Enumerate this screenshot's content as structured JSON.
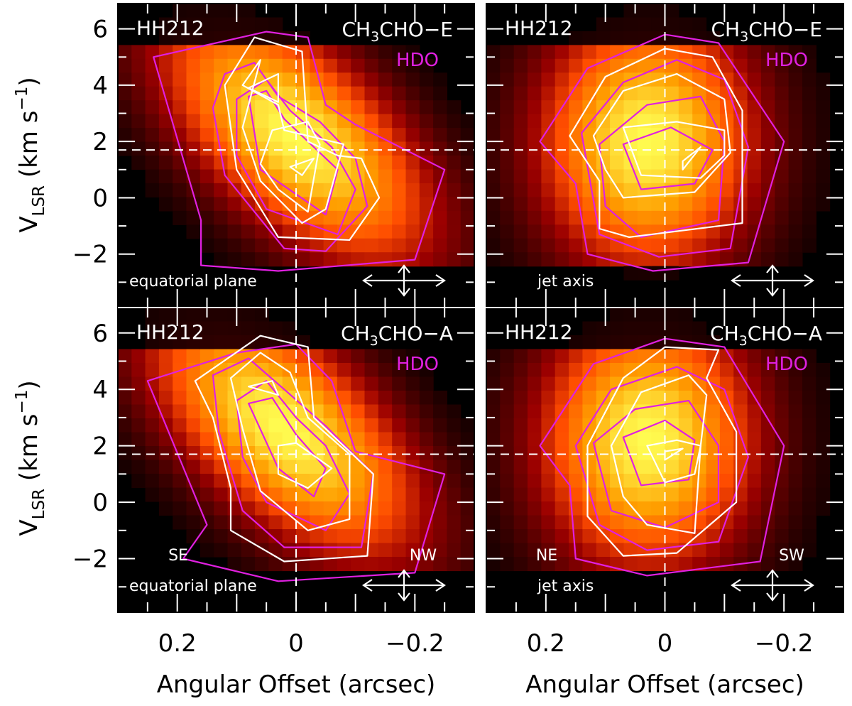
{
  "chart_data": {
    "type": "heatmap",
    "figure_description": "Position-velocity diagrams with contours",
    "colors": {
      "background": "#000000",
      "species_contour": "#ffffff",
      "hdo_contour": "#e020e0",
      "hdo_label": "#e020e0",
      "reference_lines": "#ffffff"
    },
    "xlabel": "Angular Offset (arcsec)",
    "ylabel": {
      "main": "V",
      "subscript": "LSR",
      "units_prefix": "(km s",
      "units_exponent": "−1",
      "units_suffix": ")"
    },
    "x_range": [
      0.3,
      -0.3
    ],
    "y_range": [
      -3.9,
      6.9
    ],
    "x_ticks": [
      0.2,
      0,
      -0.2
    ],
    "x_tick_labels": [
      "0.2",
      "0",
      "−0.2"
    ],
    "y_ticks": [
      6,
      4,
      2,
      0,
      -2
    ],
    "y_tick_labels": [
      "6",
      "4",
      "2",
      "0",
      "−2"
    ],
    "systemic_velocity": 1.7,
    "zero_offset": 0,
    "panels": [
      {
        "source": "HH212",
        "species": {
          "main": "CH",
          "sub": "3",
          "rest": "CHO−E"
        },
        "tracer": "HDO",
        "cut": "equatorial plane",
        "direction_labels": [],
        "emission_peak": {
          "offset": 0.0,
          "velocity": 2.2
        },
        "emission_tilt": 0.12,
        "species_contours": [
          [
            [
              0.12,
              4.0
            ],
            [
              0.07,
              5.7
            ],
            [
              -0.01,
              5.2
            ],
            [
              -0.02,
              2.0
            ],
            [
              -0.07,
              1.5
            ],
            [
              -0.11,
              1.4
            ],
            [
              -0.14,
              0.0
            ],
            [
              -0.09,
              -1.5
            ],
            [
              0.03,
              -1.4
            ],
            [
              0.1,
              1.0
            ]
          ],
          [
            [
              0.06,
              4.9
            ],
            [
              0.09,
              4.0
            ],
            [
              0.03,
              3.3
            ],
            [
              0.02,
              2.4
            ],
            [
              -0.08,
              1.9
            ],
            [
              -0.05,
              -0.4
            ],
            [
              -0.01,
              -0.9
            ],
            [
              0.06,
              0.6
            ],
            [
              0.09,
              2.5
            ]
          ],
          [
            [
              0.08,
              3.9
            ],
            [
              0.03,
              4.4
            ],
            [
              0.03,
              3.4
            ]
          ],
          [
            [
              0.04,
              2.4
            ],
            [
              -0.02,
              2.7
            ],
            [
              -0.04,
              1.9
            ],
            [
              -0.02,
              -0.5
            ],
            [
              0.03,
              0.3
            ],
            [
              0.06,
              1.2
            ]
          ],
          [
            [
              0.01,
              1.1
            ],
            [
              -0.03,
              1.4
            ],
            [
              -0.01,
              0.8
            ]
          ]
        ],
        "hdo_contours": [
          [
            [
              0.24,
              5.0
            ],
            [
              0.05,
              5.9
            ],
            [
              -0.02,
              5.7
            ],
            [
              -0.05,
              3.3
            ],
            [
              -0.1,
              2.6
            ],
            [
              -0.25,
              1.0
            ],
            [
              -0.2,
              -2.2
            ],
            [
              0.03,
              -2.6
            ],
            [
              0.16,
              -2.4
            ],
            [
              0.16,
              -0.8
            ]
          ],
          [
            [
              0.12,
              4.4
            ],
            [
              0.07,
              4.8
            ],
            [
              0.03,
              3.6
            ],
            [
              -0.04,
              2.7
            ],
            [
              -0.1,
              1.4
            ],
            [
              -0.12,
              -0.3
            ],
            [
              -0.05,
              -1.9
            ],
            [
              0.02,
              -1.8
            ],
            [
              0.12,
              0.8
            ],
            [
              0.14,
              3.2
            ]
          ],
          [
            [
              0.1,
              3.5
            ],
            [
              0.05,
              4.2
            ],
            [
              0.01,
              3.1
            ],
            [
              -0.06,
              1.8
            ],
            [
              -0.1,
              0.3
            ],
            [
              -0.07,
              -1.3
            ],
            [
              0.05,
              -0.4
            ],
            [
              0.1,
              1.5
            ]
          ],
          [
            [
              0.08,
              3.6
            ],
            [
              0.05,
              3.8
            ],
            [
              0.02,
              2.8
            ],
            [
              -0.07,
              1.0
            ],
            [
              -0.05,
              -0.6
            ],
            [
              0.06,
              1.0
            ]
          ]
        ]
      },
      {
        "source": "HH212",
        "species": {
          "main": "CH",
          "sub": "3",
          "rest": "CHO−E"
        },
        "tracer": "HDO",
        "cut": "jet axis",
        "direction_labels": [],
        "emission_peak": {
          "offset": 0.03,
          "velocity": 2.0
        },
        "emission_tilt": 0.0,
        "species_contours": [
          [
            [
              0.16,
              2.2
            ],
            [
              0.1,
              4.3
            ],
            [
              0.0,
              5.3
            ],
            [
              -0.08,
              5.0
            ],
            [
              -0.13,
              3.1
            ],
            [
              -0.13,
              -0.9
            ],
            [
              0.06,
              -1.4
            ],
            [
              0.11,
              -1.1
            ],
            [
              0.11,
              0.6
            ]
          ],
          [
            [
              0.12,
              2.2
            ],
            [
              0.07,
              3.8
            ],
            [
              -0.02,
              4.4
            ],
            [
              -0.1,
              3.5
            ],
            [
              -0.11,
              1.6
            ],
            [
              -0.05,
              0.2
            ],
            [
              0.07,
              0.0
            ],
            [
              0.1,
              1.0
            ]
          ],
          [
            [
              0.07,
              2.5
            ],
            [
              -0.02,
              2.7
            ],
            [
              -0.1,
              2.4
            ],
            [
              -0.1,
              1.5
            ],
            [
              -0.06,
              0.7
            ],
            [
              0.04,
              0.8
            ]
          ],
          [
            [
              -0.03,
              1.3
            ],
            [
              -0.06,
              1.8
            ],
            [
              -0.03,
              1.0
            ]
          ]
        ],
        "hdo_contours": [
          [
            [
              0.21,
              2.0
            ],
            [
              0.13,
              4.6
            ],
            [
              0.0,
              5.8
            ],
            [
              -0.09,
              5.5
            ],
            [
              -0.2,
              2.0
            ],
            [
              -0.14,
              -2.3
            ],
            [
              0.02,
              -2.6
            ],
            [
              0.13,
              -2.0
            ],
            [
              0.15,
              0.5
            ]
          ],
          [
            [
              0.14,
              2.3
            ],
            [
              0.07,
              4.1
            ],
            [
              -0.02,
              4.9
            ],
            [
              -0.1,
              4.2
            ],
            [
              -0.14,
              1.8
            ],
            [
              -0.11,
              -1.8
            ],
            [
              0.01,
              -2.1
            ],
            [
              0.11,
              -1.3
            ]
          ],
          [
            [
              0.11,
              1.9
            ],
            [
              0.03,
              3.3
            ],
            [
              -0.06,
              3.6
            ],
            [
              -0.1,
              2.0
            ],
            [
              -0.09,
              -0.8
            ],
            [
              0.04,
              -1.4
            ],
            [
              0.1,
              -0.3
            ]
          ],
          [
            [
              0.07,
              1.9
            ],
            [
              -0.01,
              2.5
            ],
            [
              -0.08,
              1.7
            ],
            [
              -0.05,
              0.5
            ],
            [
              0.04,
              0.3
            ]
          ]
        ]
      },
      {
        "source": "HH212",
        "species": {
          "main": "CH",
          "sub": "3",
          "rest": "CHO−A"
        },
        "tracer": "HDO",
        "cut": "equatorial plane",
        "direction_labels": [
          "SE",
          "NW"
        ],
        "emission_peak": {
          "offset": 0.02,
          "velocity": 2.6
        },
        "emission_tilt": 0.12,
        "species_contours": [
          [
            [
              0.17,
              4.3
            ],
            [
              0.06,
              5.9
            ],
            [
              -0.02,
              5.5
            ],
            [
              -0.03,
              3.0
            ],
            [
              -0.13,
              1.0
            ],
            [
              -0.12,
              -1.9
            ],
            [
              0.02,
              -2.1
            ],
            [
              0.11,
              -1.0
            ],
            [
              0.11,
              0.5
            ],
            [
              0.14,
              3.0
            ]
          ],
          [
            [
              0.11,
              4.4
            ],
            [
              0.06,
              5.3
            ],
            [
              0.01,
              4.6
            ],
            [
              -0.02,
              3.0
            ],
            [
              -0.09,
              1.7
            ],
            [
              -0.09,
              -0.6
            ],
            [
              -0.02,
              -1.0
            ],
            [
              0.06,
              0.4
            ],
            [
              0.09,
              2.6
            ]
          ],
          [
            [
              0.08,
              4.1
            ],
            [
              0.04,
              4.3
            ],
            [
              0.03,
              3.8
            ]
          ],
          [
            [
              0.03,
              2.0
            ],
            [
              0.0,
              2.1
            ],
            [
              -0.06,
              1.2
            ],
            [
              -0.02,
              0.5
            ],
            [
              0.03,
              1.0
            ]
          ]
        ],
        "hdo_contours": [
          [
            [
              0.25,
              4.3
            ],
            [
              0.1,
              5.3
            ],
            [
              0.0,
              5.6
            ],
            [
              -0.06,
              4.3
            ],
            [
              -0.1,
              1.8
            ],
            [
              -0.25,
              1.0
            ],
            [
              -0.2,
              -2.5
            ],
            [
              0.03,
              -2.8
            ],
            [
              0.19,
              -2.0
            ],
            [
              0.15,
              -0.8
            ]
          ],
          [
            [
              0.14,
              4.5
            ],
            [
              0.08,
              5.1
            ],
            [
              0.02,
              4.0
            ],
            [
              -0.05,
              2.7
            ],
            [
              -0.13,
              1.0
            ],
            [
              -0.11,
              -1.6
            ],
            [
              0.02,
              -1.6
            ],
            [
              0.09,
              -0.3
            ],
            [
              0.13,
              2.5
            ]
          ],
          [
            [
              0.1,
              3.6
            ],
            [
              0.05,
              4.3
            ],
            [
              0.0,
              3.0
            ],
            [
              -0.05,
              2.0
            ],
            [
              -0.09,
              0.3
            ],
            [
              -0.05,
              -1.0
            ],
            [
              0.05,
              0.0
            ],
            [
              0.09,
              1.6
            ]
          ],
          [
            [
              0.08,
              3.5
            ],
            [
              0.04,
              3.7
            ],
            [
              0.0,
              2.4
            ],
            [
              -0.05,
              1.2
            ],
            [
              -0.03,
              0.2
            ],
            [
              0.03,
              1.2
            ]
          ]
        ]
      },
      {
        "source": "HH212",
        "species": {
          "main": "CH",
          "sub": "3",
          "rest": "CHO−A"
        },
        "tracer": "HDO",
        "cut": "jet axis",
        "direction_labels": [
          "NE",
          "SW"
        ],
        "emission_peak": {
          "offset": 0.03,
          "velocity": 2.2
        },
        "emission_tilt": 0.0,
        "species_contours": [
          [
            [
              0.13,
              2.0
            ],
            [
              0.07,
              4.4
            ],
            [
              0.0,
              5.5
            ],
            [
              -0.09,
              5.4
            ],
            [
              -0.07,
              4.4
            ],
            [
              -0.12,
              2.5
            ],
            [
              -0.12,
              0.0
            ],
            [
              -0.02,
              -1.8
            ],
            [
              0.07,
              -1.9
            ],
            [
              0.13,
              -0.5
            ]
          ],
          [
            [
              0.09,
              2.0
            ],
            [
              0.04,
              3.9
            ],
            [
              -0.04,
              4.5
            ],
            [
              -0.07,
              3.8
            ],
            [
              -0.06,
              2.0
            ],
            [
              -0.05,
              -1.1
            ],
            [
              0.03,
              -0.8
            ],
            [
              0.07,
              0.2
            ]
          ],
          [
            [
              0.03,
              2.0
            ],
            [
              -0.02,
              2.2
            ],
            [
              -0.06,
              2.0
            ],
            [
              -0.05,
              1.0
            ],
            [
              0.0,
              0.7
            ]
          ],
          [
            [
              0.0,
              1.8
            ],
            [
              -0.03,
              1.9
            ],
            [
              0.0,
              1.5
            ]
          ]
        ],
        "hdo_contours": [
          [
            [
              0.21,
              2.0
            ],
            [
              0.12,
              4.9
            ],
            [
              0.0,
              5.8
            ],
            [
              -0.1,
              5.5
            ],
            [
              -0.2,
              2.0
            ],
            [
              -0.16,
              -2.1
            ],
            [
              0.03,
              -2.6
            ],
            [
              0.15,
              -2.0
            ],
            [
              0.16,
              0.6
            ]
          ],
          [
            [
              0.15,
              2.0
            ],
            [
              0.09,
              4.0
            ],
            [
              -0.02,
              4.8
            ],
            [
              -0.1,
              4.0
            ],
            [
              -0.14,
              1.6
            ],
            [
              -0.09,
              -1.4
            ],
            [
              0.03,
              -1.7
            ],
            [
              0.11,
              -0.8
            ]
          ],
          [
            [
              0.12,
              2.1
            ],
            [
              0.05,
              3.3
            ],
            [
              -0.04,
              3.6
            ],
            [
              -0.09,
              2.0
            ],
            [
              -0.09,
              0.0
            ],
            [
              0.0,
              -0.9
            ],
            [
              0.09,
              -0.3
            ]
          ],
          [
            [
              0.07,
              2.3
            ],
            [
              0.0,
              2.9
            ],
            [
              -0.05,
              2.2
            ],
            [
              -0.04,
              0.8
            ],
            [
              0.04,
              0.6
            ]
          ]
        ]
      }
    ]
  }
}
